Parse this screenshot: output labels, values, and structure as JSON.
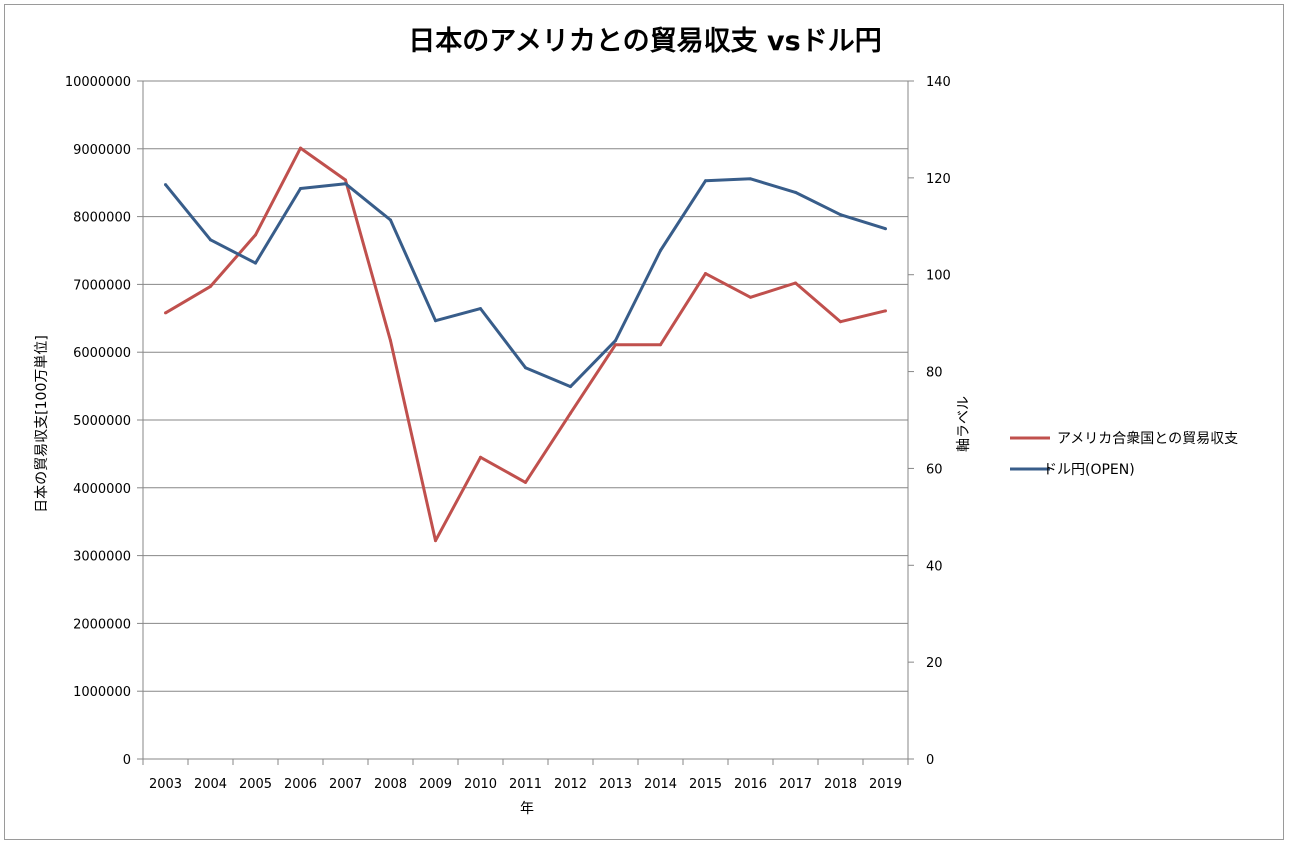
{
  "chart_data": {
    "type": "line",
    "title": "日本のアメリカとの貿易収支 vsドル円",
    "xlabel": "年",
    "ylabel_left": "日本の貿易収支[100万単位]",
    "ylabel_right": "軸ラベル",
    "categories": [
      "2003",
      "2004",
      "2005",
      "2006",
      "2007",
      "2008",
      "2009",
      "2010",
      "2011",
      "2012",
      "2013",
      "2014",
      "2015",
      "2016",
      "2017",
      "2018",
      "2019"
    ],
    "ylim_left": [
      0,
      10000000
    ],
    "ylim_right": [
      0,
      140
    ],
    "left_ticks": [
      "0",
      "1000000",
      "2000000",
      "3000000",
      "4000000",
      "5000000",
      "6000000",
      "7000000",
      "8000000",
      "9000000",
      "10000000"
    ],
    "right_ticks": [
      "0",
      "20",
      "40",
      "60",
      "80",
      "100",
      "120",
      "140"
    ],
    "grid": true,
    "legend_position": "right",
    "series": [
      {
        "name": "アメリカ合衆国との貿易収支",
        "axis": "left",
        "color": "#c0504d",
        "values": [
          6580000,
          6970000,
          7730000,
          9010000,
          8540000,
          6170000,
          3220000,
          4450000,
          4080000,
          5100000,
          6110000,
          6110000,
          7160000,
          6810000,
          7020000,
          6450000,
          6610000
        ]
      },
      {
        "name": "ドル円(OPEN)",
        "axis": "right",
        "color": "#385d8a",
        "values": [
          118.6,
          107.2,
          102.4,
          117.8,
          118.8,
          111.3,
          90.5,
          93.0,
          80.8,
          76.9,
          86.4,
          105.0,
          119.4,
          119.8,
          117.0,
          112.4,
          109.5
        ]
      }
    ]
  }
}
